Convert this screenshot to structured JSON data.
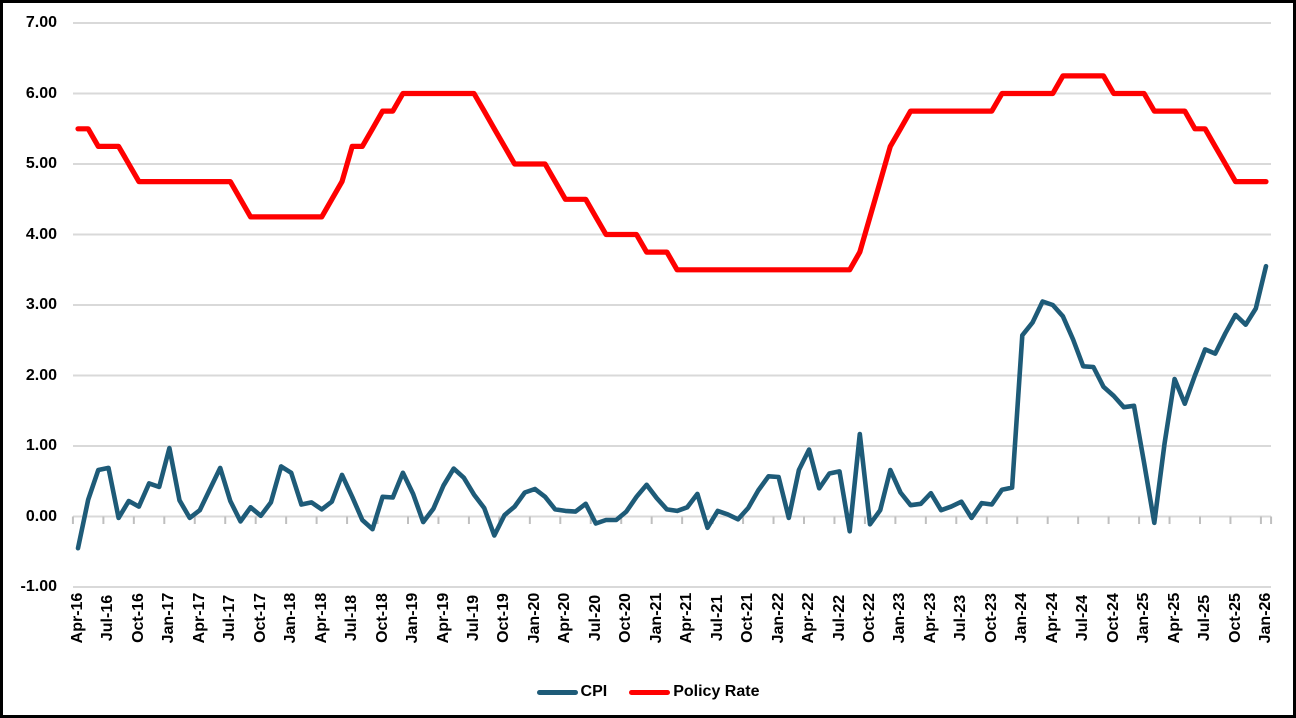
{
  "figure": {
    "background": "#FFFFFF",
    "border_color": "#000000"
  },
  "axes": {
    "y_ticks": [
      {
        "value": 7,
        "label": "7.00"
      },
      {
        "value": 6,
        "label": "6.00"
      },
      {
        "value": 5,
        "label": "5.00"
      },
      {
        "value": 4,
        "label": "4.00"
      },
      {
        "value": 3,
        "label": "3.00"
      },
      {
        "value": 2,
        "label": "2.00"
      },
      {
        "value": 1,
        "label": "1.00"
      },
      {
        "value": 0,
        "label": "0.00"
      },
      {
        "value": -1,
        "label": "-1.00"
      }
    ]
  },
  "legend": {
    "items": [
      {
        "label": "CPI",
        "color": "#1E5B78"
      },
      {
        "label": "Policy Rate",
        "color": "#FF0000"
      }
    ]
  },
  "chart_data": {
    "type": "line",
    "title": "",
    "xlabel": "",
    "ylabel": "",
    "ylim": [
      -1,
      7
    ],
    "grid": true,
    "legend_position": "bottom",
    "x_label_step_months": 3,
    "categories": [
      "Apr-16",
      "Jul-16",
      "Oct-16",
      "Jan-17",
      "Apr-17",
      "Jul-17",
      "Oct-17",
      "Jan-18",
      "Apr-18",
      "Jul-18",
      "Oct-18",
      "Jan-19",
      "Apr-19",
      "Jul-19",
      "Oct-19",
      "Jan-20",
      "Apr-20",
      "Jul-20",
      "Oct-20",
      "Jan-21",
      "Apr-21",
      "Jul-21",
      "Oct-21",
      "Jan-22",
      "Apr-22",
      "Jul-22",
      "Oct-22",
      "Jan-23",
      "Apr-23",
      "Jul-23",
      "Oct-23",
      "Jan-24",
      "Apr-24",
      "Jul-24",
      "Oct-24",
      "Jan-25",
      "Apr-25",
      "Jul-25",
      "Oct-25",
      "Jan-26"
    ],
    "series": [
      {
        "name": "CPI",
        "color": "#1E5B78",
        "stroke_width": 4.6,
        "values": [
          -0.45,
          0.24,
          0.66,
          0.69,
          -0.02,
          0.22,
          0.14,
          0.47,
          0.42,
          0.97,
          0.23,
          -0.02,
          0.09,
          0.39,
          0.69,
          0.22,
          -0.07,
          0.13,
          0.01,
          0.2,
          0.71,
          0.62,
          0.17,
          0.2,
          0.1,
          0.21,
          0.59,
          0.28,
          -0.05,
          -0.18,
          0.28,
          0.27,
          0.62,
          0.32,
          -0.08,
          0.11,
          0.44,
          0.68,
          0.55,
          0.31,
          0.12,
          -0.27,
          0.02,
          0.14,
          0.34,
          0.39,
          0.28,
          0.1,
          0.08,
          0.07,
          0.18,
          -0.1,
          -0.05,
          -0.05,
          0.07,
          0.28,
          0.45,
          0.26,
          0.1,
          0.08,
          0.13,
          0.32,
          -0.16,
          0.08,
          0.03,
          -0.04,
          0.12,
          0.37,
          0.57,
          0.56,
          -0.02,
          0.66,
          0.95,
          0.4,
          0.61,
          0.64,
          -0.21,
          1.17,
          -0.11,
          0.09,
          0.66,
          0.34,
          0.16,
          0.18,
          0.33,
          0.09,
          0.14,
          0.21,
          -0.02,
          0.19,
          0.17,
          0.38,
          0.41,
          2.57,
          2.75,
          3.05,
          3.0,
          2.84,
          2.51,
          2.13,
          2.12,
          1.84,
          1.71,
          1.55,
          1.57,
          0.76,
          -0.09,
          1.03,
          1.95,
          1.6,
          2.0,
          2.37,
          2.31,
          2.6,
          2.86,
          2.72,
          2.95,
          3.55
        ]
      },
      {
        "name": "Policy Rate",
        "color": "#FF0000",
        "stroke_width": 5.2,
        "values": [
          5.5,
          5.5,
          5.25,
          5.25,
          5.25,
          5.0,
          4.75,
          4.75,
          4.75,
          4.75,
          4.75,
          4.75,
          4.75,
          4.75,
          4.75,
          4.75,
          4.5,
          4.25,
          4.25,
          4.25,
          4.25,
          4.25,
          4.25,
          4.25,
          4.25,
          4.5,
          4.75,
          5.25,
          5.25,
          5.5,
          5.75,
          5.75,
          6.0,
          6.0,
          6.0,
          6.0,
          6.0,
          6.0,
          6.0,
          6.0,
          5.75,
          5.5,
          5.25,
          5.0,
          5.0,
          5.0,
          5.0,
          4.75,
          4.5,
          4.5,
          4.5,
          4.25,
          4.0,
          4.0,
          4.0,
          4.0,
          3.75,
          3.75,
          3.75,
          3.5,
          3.5,
          3.5,
          3.5,
          3.5,
          3.5,
          3.5,
          3.5,
          3.5,
          3.5,
          3.5,
          3.5,
          3.5,
          3.5,
          3.5,
          3.5,
          3.5,
          3.5,
          3.75,
          4.25,
          4.75,
          5.25,
          5.5,
          5.75,
          5.75,
          5.75,
          5.75,
          5.75,
          5.75,
          5.75,
          5.75,
          5.75,
          6.0,
          6.0,
          6.0,
          6.0,
          6.0,
          6.0,
          6.25,
          6.25,
          6.25,
          6.25,
          6.25,
          6.0,
          6.0,
          6.0,
          6.0,
          5.75,
          5.75,
          5.75,
          5.75,
          5.5,
          5.5,
          5.25,
          5.0,
          4.75,
          4.75,
          4.75,
          4.75
        ]
      }
    ]
  }
}
